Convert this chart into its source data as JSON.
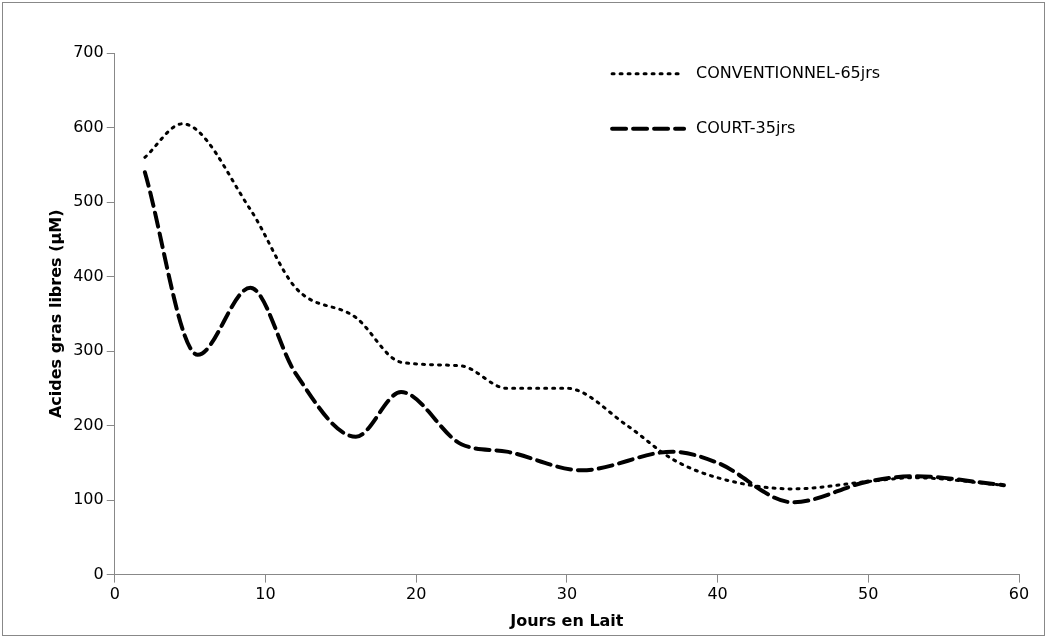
{
  "chart_data": {
    "type": "line",
    "xlabel": "Jours en Lait",
    "ylabel": "Acides gras libres (µM)",
    "xlim": [
      0,
      60
    ],
    "xticks": [
      0,
      10,
      20,
      30,
      40,
      50,
      60
    ],
    "ylim": [
      0,
      700
    ],
    "yticks": [
      0,
      100,
      200,
      300,
      400,
      500,
      600,
      700
    ],
    "grid": false,
    "legend": "top right",
    "marker": "none",
    "series": [
      {
        "name": "CONVENTIONNEL-65jrs",
        "color": "#000000",
        "line_style": "dotted",
        "x": [
          2,
          4.5,
          9,
          12,
          16,
          19,
          23,
          26,
          30,
          34,
          37,
          40,
          45,
          50,
          53,
          59
        ],
        "values": [
          560,
          605,
          490,
          385,
          345,
          285,
          280,
          250,
          250,
          200,
          155,
          130,
          115,
          125,
          130,
          120
        ]
      },
      {
        "name": "COURT-35jrs",
        "color": "#000000",
        "line_style": "dashed",
        "x": [
          2,
          5.5,
          9,
          12,
          16,
          19,
          23,
          26,
          31,
          37,
          40,
          45,
          50,
          53,
          59
        ],
        "values": [
          540,
          295,
          385,
          270,
          185,
          245,
          175,
          165,
          140,
          165,
          150,
          97,
          125,
          132,
          120
        ]
      }
    ]
  }
}
